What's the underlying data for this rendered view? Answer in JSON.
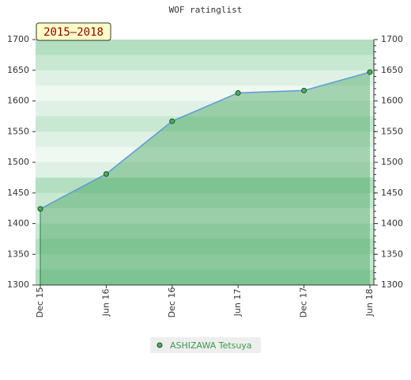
{
  "chart_data": {
    "type": "area",
    "title": "WOF ratinglist",
    "annotation": "2015–2018",
    "categories": [
      "Dec 15",
      "Jun 16",
      "Dec 16",
      "Jun 17",
      "Dec 17",
      "Jun 18"
    ],
    "series": [
      {
        "name": "ASHIZAWA Tetsuya",
        "color": "#5b9bd5",
        "values": [
          1424,
          1481,
          1567,
          1613,
          1617,
          1647
        ]
      }
    ],
    "ylim": [
      1300,
      1700
    ],
    "yticks": [
      1300,
      1350,
      1400,
      1450,
      1500,
      1550,
      1600,
      1650,
      1700
    ],
    "y2lim": [
      1300,
      1700
    ],
    "y2ticks": [
      1300,
      1350,
      1400,
      1450,
      1500,
      1550,
      1600,
      1650,
      1700
    ]
  }
}
